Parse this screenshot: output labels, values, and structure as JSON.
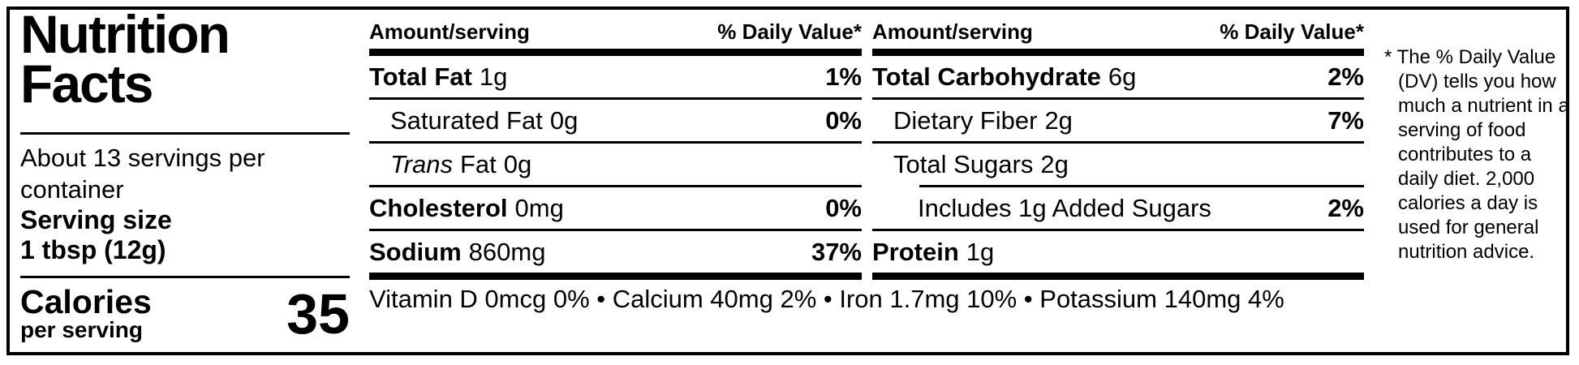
{
  "colors": {
    "text": "#000000",
    "background": "#ffffff"
  },
  "label": {
    "title_line1": "Nutrition",
    "title_line2": "Facts",
    "servings_per_container": "About 13 servings per container",
    "serving_size_label": "Serving size",
    "serving_size_value": "1 tbsp (12g)",
    "calories": {
      "label": "Calories",
      "sublabel": "per serving",
      "value": "35"
    },
    "columns": [
      {
        "header_amount": "Amount/serving",
        "header_dv": "% Daily Value*",
        "rows": [
          {
            "name": "Total Fat",
            "amount": "1g",
            "dv": "1%"
          },
          {
            "name": "Saturated Fat",
            "amount": "0g",
            "dv": "0%"
          },
          {
            "name_italic": "Trans",
            "name": "Fat",
            "amount": "0g",
            "dv": ""
          },
          {
            "name": "Cholesterol",
            "amount": "0mg",
            "dv": "0%"
          },
          {
            "name": "Sodium",
            "amount": "860mg",
            "dv": "37%"
          }
        ]
      },
      {
        "header_amount": "Amount/serving",
        "header_dv": "% Daily Value*",
        "rows": [
          {
            "name": "Total Carbohydrate",
            "amount": "6g",
            "dv": "2%"
          },
          {
            "name": "Dietary Fiber",
            "amount": "2g",
            "dv": "7%"
          },
          {
            "name": "Total Sugars",
            "amount": "2g",
            "dv": ""
          },
          {
            "name": "Includes 1g Added Sugars",
            "amount": "",
            "dv": "2%"
          },
          {
            "name": "Protein",
            "amount": "1g",
            "dv": ""
          }
        ]
      }
    ],
    "micronutrients": {
      "text": "Vitamin D 0mcg 0% • Calcium 40mg 2% • Iron 1.7mg 10% • Potassium 140mg 4%",
      "items": [
        {
          "name": "Vitamin D",
          "amount": "0mcg",
          "dv": "0%"
        },
        {
          "name": "Calcium",
          "amount": "40mg",
          "dv": "2%"
        },
        {
          "name": "Iron",
          "amount": "1.7mg",
          "dv": "10%"
        },
        {
          "name": "Potassium",
          "amount": "140mg",
          "dv": "4%"
        }
      ]
    },
    "footnote": "* The % Daily Value (DV) tells you how much a nutrient in a serving of food contributes to a daily diet. 2,000 calories a day is used for general nutrition advice."
  }
}
